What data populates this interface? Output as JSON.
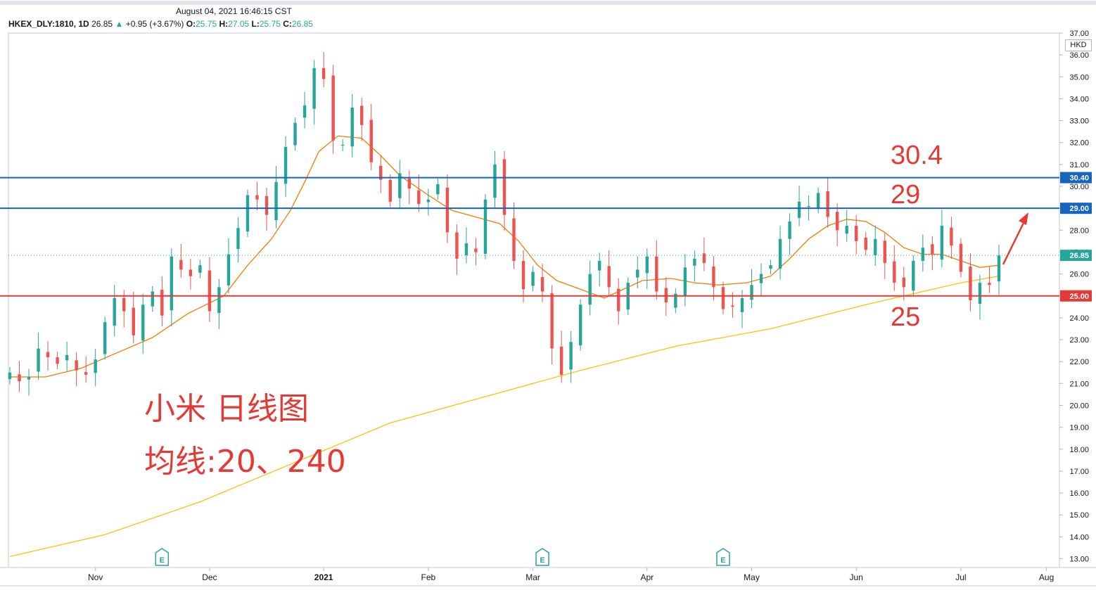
{
  "header": {
    "datetime": "August 04, 2021 16:46:15 CST",
    "symbol": "HKEX_DLY:1810, 1D",
    "last": "26.85",
    "change": "+0.95 (+3.67%)",
    "o_label": "O:",
    "o": "25.75",
    "h_label": "H:",
    "h": "27.05",
    "l_label": "L:",
    "l": "25.75",
    "c_label": "C:",
    "c": "26.85"
  },
  "annotations": {
    "title_cn": "小米 日线图",
    "ma_cn": "均线:20、240",
    "level_304": "30.4",
    "level_29": "29",
    "level_25": "25"
  },
  "colors": {
    "up": "#26a69a",
    "down": "#ef5350",
    "ma20": "#f57c00",
    "ma240": "#ffc107",
    "hline_blue": "#1565c0",
    "hline_red": "#e53935",
    "arrow": "#e53935"
  },
  "chart_data": {
    "type": "candlestick",
    "currency": "HKD",
    "ylim": [
      12.6,
      37.0
    ],
    "y_ticks": [
      "13.00",
      "14.00",
      "15.00",
      "16.00",
      "17.00",
      "18.00",
      "19.00",
      "20.00",
      "21.00",
      "22.00",
      "23.00",
      "24.00",
      "25.00",
      "26.00",
      "27.00",
      "28.00",
      "29.00",
      "30.00",
      "31.00",
      "32.00",
      "33.00",
      "34.00",
      "35.00",
      "36.00",
      "37.00"
    ],
    "x_ticks": [
      "Nov",
      "Dec",
      "2021",
      "Feb",
      "Mar",
      "Apr",
      "May",
      "Jun",
      "Jul",
      "Aug"
    ],
    "price_tags": [
      {
        "value": 30.4,
        "label": "30.40",
        "color": "#1565c0"
      },
      {
        "value": 29.0,
        "label": "29.00",
        "color": "#1565c0"
      },
      {
        "value": 26.85,
        "label": "26.85",
        "color": "#26a69a"
      },
      {
        "value": 25.0,
        "label": "25.00",
        "color": "#e53935"
      }
    ],
    "horizontal_lines": [
      {
        "value": 30.4,
        "color": "#1565c0"
      },
      {
        "value": 29.0,
        "color": "#1565c0"
      },
      {
        "value": 25.0,
        "color": "#e53935"
      }
    ],
    "last_price_line": 26.85,
    "earnings_markers": [
      "Nov",
      "Mar",
      "May"
    ],
    "series_close": [
      [
        0,
        21.5
      ],
      [
        4,
        21.1
      ],
      [
        8,
        21.3
      ],
      [
        12,
        22.6
      ],
      [
        16,
        22.2
      ],
      [
        20,
        21.9
      ],
      [
        24,
        22.3
      ],
      [
        28,
        21.6
      ],
      [
        32,
        21.4
      ],
      [
        36,
        22.1
      ],
      [
        40,
        23.8
      ],
      [
        44,
        24.9
      ],
      [
        48,
        24.3
      ],
      [
        52,
        23.2
      ],
      [
        56,
        24.6
      ],
      [
        60,
        25.2
      ],
      [
        64,
        24.1
      ],
      [
        68,
        26.8
      ],
      [
        72,
        26.2
      ],
      [
        76,
        25.9
      ],
      [
        80,
        26.4
      ],
      [
        84,
        24.3
      ],
      [
        88,
        25.4
      ],
      [
        92,
        26.9
      ],
      [
        96,
        28.1
      ],
      [
        100,
        29.6
      ],
      [
        104,
        29.4
      ],
      [
        108,
        28.7
      ],
      [
        112,
        30.2
      ],
      [
        116,
        31.8
      ],
      [
        120,
        32.9
      ],
      [
        124,
        33.7
      ],
      [
        128,
        35.4
      ],
      [
        132,
        34.9
      ],
      [
        136,
        32.1
      ],
      [
        140,
        31.9
      ],
      [
        144,
        33.6
      ],
      [
        148,
        32.8
      ],
      [
        152,
        31.1
      ],
      [
        156,
        30.3
      ],
      [
        160,
        29.3
      ],
      [
        164,
        30.6
      ],
      [
        168,
        29.9
      ],
      [
        172,
        29.2
      ],
      [
        176,
        29.4
      ],
      [
        180,
        30.1
      ],
      [
        184,
        27.9
      ],
      [
        188,
        26.7
      ],
      [
        192,
        27.4
      ],
      [
        196,
        27.0
      ],
      [
        200,
        29.4
      ],
      [
        204,
        31.0
      ],
      [
        208,
        28.7
      ],
      [
        212,
        26.6
      ],
      [
        216,
        25.3
      ],
      [
        220,
        26.1
      ],
      [
        224,
        25.2
      ],
      [
        228,
        22.6
      ],
      [
        232,
        21.4
      ],
      [
        236,
        22.9
      ],
      [
        240,
        24.6
      ],
      [
        244,
        26.0
      ],
      [
        248,
        26.6
      ],
      [
        252,
        25.4
      ],
      [
        256,
        24.3
      ],
      [
        260,
        25.6
      ],
      [
        264,
        26.2
      ],
      [
        268,
        26.8
      ],
      [
        272,
        25.2
      ],
      [
        276,
        24.7
      ],
      [
        280,
        25.1
      ],
      [
        284,
        26.3
      ],
      [
        288,
        26.7
      ],
      [
        292,
        26.5
      ],
      [
        296,
        25.4
      ],
      [
        300,
        24.4
      ],
      [
        304,
        24.5
      ],
      [
        308,
        24.9
      ],
      [
        312,
        25.5
      ],
      [
        316,
        26.0
      ],
      [
        320,
        26.4
      ],
      [
        324,
        27.6
      ],
      [
        328,
        28.4
      ],
      [
        332,
        29.3
      ],
      [
        336,
        29.1
      ],
      [
        340,
        29.7
      ],
      [
        344,
        28.6
      ],
      [
        348,
        28.0
      ],
      [
        352,
        28.2
      ],
      [
        356,
        27.5
      ],
      [
        360,
        27.1
      ],
      [
        364,
        27.6
      ],
      [
        368,
        26.5
      ],
      [
        372,
        25.6
      ],
      [
        376,
        25.4
      ],
      [
        380,
        26.6
      ],
      [
        384,
        27.2
      ],
      [
        388,
        26.9
      ],
      [
        392,
        28.2
      ],
      [
        396,
        27.3
      ],
      [
        400,
        26.1
      ],
      [
        404,
        24.8
      ],
      [
        408,
        25.6
      ],
      [
        412,
        25.5
      ],
      [
        416,
        26.85
      ]
    ],
    "ma20": [
      [
        0,
        21.3
      ],
      [
        15,
        21.3
      ],
      [
        30,
        21.7
      ],
      [
        45,
        22.4
      ],
      [
        60,
        23.1
      ],
      [
        75,
        24.2
      ],
      [
        90,
        25.0
      ],
      [
        100,
        26.4
      ],
      [
        110,
        27.6
      ],
      [
        118,
        28.9
      ],
      [
        124,
        30.2
      ],
      [
        130,
        31.6
      ],
      [
        138,
        32.3
      ],
      [
        148,
        32.2
      ],
      [
        156,
        31.4
      ],
      [
        164,
        30.5
      ],
      [
        176,
        29.6
      ],
      [
        186,
        28.9
      ],
      [
        196,
        28.6
      ],
      [
        206,
        28.3
      ],
      [
        214,
        27.5
      ],
      [
        222,
        26.4
      ],
      [
        230,
        25.7
      ],
      [
        240,
        25.3
      ],
      [
        250,
        24.9
      ],
      [
        258,
        25.3
      ],
      [
        266,
        25.7
      ],
      [
        278,
        25.8
      ],
      [
        288,
        25.6
      ],
      [
        298,
        25.5
      ],
      [
        310,
        25.6
      ],
      [
        320,
        25.9
      ],
      [
        328,
        26.7
      ],
      [
        336,
        27.6
      ],
      [
        344,
        28.2
      ],
      [
        352,
        28.5
      ],
      [
        360,
        28.4
      ],
      [
        368,
        27.9
      ],
      [
        376,
        27.2
      ],
      [
        384,
        26.9
      ],
      [
        392,
        26.9
      ],
      [
        400,
        26.6
      ],
      [
        408,
        26.3
      ],
      [
        416,
        26.4
      ]
    ],
    "ma240": [
      [
        0,
        13.1
      ],
      [
        40,
        14.1
      ],
      [
        80,
        15.6
      ],
      [
        120,
        17.4
      ],
      [
        160,
        19.2
      ],
      [
        200,
        20.4
      ],
      [
        240,
        21.6
      ],
      [
        280,
        22.7
      ],
      [
        320,
        23.5
      ],
      [
        360,
        24.6
      ],
      [
        400,
        25.6
      ],
      [
        416,
        25.9
      ]
    ]
  }
}
